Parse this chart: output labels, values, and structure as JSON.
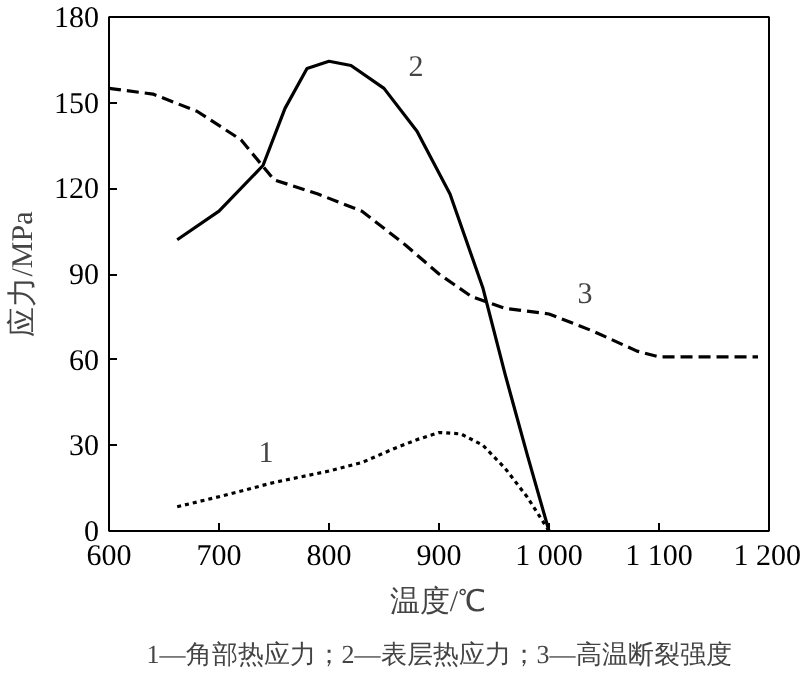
{
  "chart_data": {
    "type": "line",
    "xlabel": "温度/℃",
    "ylabel": "应力/MPa",
    "xlim": [
      600,
      1200
    ],
    "ylim": [
      0,
      180
    ],
    "xticks": [
      600,
      700,
      800,
      900,
      {
        "value": 1000,
        "label": "1 000"
      },
      {
        "value": 1100,
        "label": "1 100"
      },
      {
        "value": 1200,
        "label": "1 200"
      }
    ],
    "yticks": [
      0,
      30,
      60,
      90,
      120,
      150,
      180
    ],
    "grid": false,
    "legend": false,
    "marker": "none",
    "series": [
      {
        "name": "1",
        "color": "#000000",
        "line_style": "dotted",
        "x": [
          662,
          700,
          750,
          800,
          830,
          860,
          880,
          900,
          920,
          940,
          960,
          980,
          1000
        ],
        "values": [
          8.5,
          12,
          17,
          21,
          24,
          29,
          32,
          34.5,
          34,
          30,
          22,
          12,
          0
        ]
      },
      {
        "name": "2",
        "color": "#000000",
        "line_style": "solid",
        "x": [
          662,
          700,
          740,
          760,
          780,
          800,
          820,
          850,
          880,
          910,
          940,
          960,
          980,
          1000
        ],
        "values": [
          102,
          112,
          128,
          148,
          162,
          164.5,
          163,
          155,
          140,
          118,
          85,
          55,
          27,
          0
        ]
      },
      {
        "name": "3",
        "color": "#000000",
        "line_style": "dashed",
        "x": [
          600,
          640,
          680,
          720,
          750,
          790,
          830,
          870,
          900,
          930,
          960,
          1000,
          1040,
          1080,
          1100,
          1190
        ],
        "values": [
          155,
          153,
          147,
          137,
          123,
          118,
          112,
          100,
          90,
          82,
          78,
          76,
          70,
          63,
          61,
          61
        ]
      }
    ],
    "annotations": [
      "1—角部热应力；2—表层热应力；3—高温断裂强度"
    ]
  }
}
